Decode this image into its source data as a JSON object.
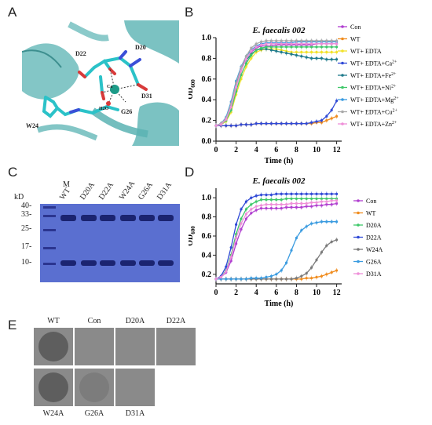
{
  "figure": {
    "panel_letters": {
      "a": "A",
      "b": "B",
      "c": "C",
      "d": "D",
      "e": "E"
    },
    "structure": {
      "labels": [
        "D22",
        "D20",
        "Ca",
        "D31",
        "H2O",
        "G26",
        "W24"
      ]
    },
    "gel": {
      "axis_unit": "kD",
      "marker_lane": "M",
      "lanes": [
        "WT",
        "D20A",
        "D22A",
        "W24A",
        "G26A",
        "D31A"
      ],
      "marker_sizes": [
        "40",
        "33",
        "25",
        "17",
        "10"
      ],
      "background": "#5a6fd0"
    },
    "plates": {
      "top_row": [
        {
          "label": "WT",
          "halo": "strong"
        },
        {
          "label": "Con",
          "halo": "none"
        },
        {
          "label": "D20A",
          "halo": "none"
        },
        {
          "label": "D22A",
          "halo": "none"
        }
      ],
      "bottom_row": [
        {
          "label": "W24A",
          "halo": "strong"
        },
        {
          "label": "G26A",
          "halo": "faint"
        },
        {
          "label": "D31A",
          "halo": "none"
        }
      ]
    }
  },
  "chart_data": [
    {
      "type": "line",
      "panel": "B",
      "title": "E. faecalis 002",
      "xlabel": "Time (h)",
      "ylabel": "OD600",
      "ylabel_main": "OD",
      "ylabel_sub": "600",
      "xlim": [
        0,
        12.5
      ],
      "ylim": [
        0.0,
        1.0
      ],
      "xticks": [
        "0",
        "2",
        "4",
        "6",
        "8",
        "10",
        "12"
      ],
      "yticks": [
        "0.0",
        "0.2",
        "0.4",
        "0.6",
        "0.8",
        "1.0"
      ],
      "legend_position": "right",
      "x": [
        0,
        0.5,
        1,
        1.5,
        2,
        2.5,
        3,
        3.5,
        4,
        4.5,
        5,
        5.5,
        6,
        6.5,
        7,
        7.5,
        8,
        8.5,
        9,
        9.5,
        10,
        10.5,
        11,
        11.5,
        12
      ],
      "series": [
        {
          "name": "Con",
          "legend_main": "Con",
          "legend_sup": "",
          "color": "#b03fd0",
          "marker": "circle",
          "values": [
            0.15,
            0.17,
            0.22,
            0.35,
            0.55,
            0.7,
            0.8,
            0.86,
            0.9,
            0.92,
            0.92,
            0.92,
            0.93,
            0.93,
            0.93,
            0.93,
            0.93,
            0.93,
            0.93,
            0.93,
            0.94,
            0.94,
            0.94,
            0.94,
            0.94
          ]
        },
        {
          "name": "WT",
          "legend_main": "WT",
          "legend_sup": "",
          "color": "#f08c1e",
          "marker": "circle",
          "values": [
            0.15,
            0.15,
            0.15,
            0.15,
            0.15,
            0.16,
            0.16,
            0.16,
            0.17,
            0.17,
            0.17,
            0.17,
            0.17,
            0.17,
            0.17,
            0.17,
            0.17,
            0.17,
            0.17,
            0.17,
            0.18,
            0.18,
            0.2,
            0.22,
            0.24
          ]
        },
        {
          "name": "WT+ EDTA",
          "legend_main": "WT+ EDTA",
          "legend_sup": "",
          "color": "#f2e22a",
          "marker": "circle",
          "values": [
            0.15,
            0.16,
            0.19,
            0.28,
            0.45,
            0.6,
            0.72,
            0.8,
            0.86,
            0.88,
            0.89,
            0.89,
            0.89,
            0.88,
            0.87,
            0.86,
            0.86,
            0.86,
            0.86,
            0.86,
            0.86,
            0.86,
            0.86,
            0.86,
            0.86
          ]
        },
        {
          "name": "WT+ EDTA+Ca2+",
          "legend_main": "WT+ EDTA+Ca",
          "legend_sup": "2+",
          "color": "#2f49d6",
          "marker": "circle",
          "values": [
            0.15,
            0.15,
            0.15,
            0.15,
            0.15,
            0.16,
            0.16,
            0.16,
            0.17,
            0.17,
            0.17,
            0.17,
            0.17,
            0.17,
            0.17,
            0.17,
            0.17,
            0.17,
            0.17,
            0.18,
            0.19,
            0.2,
            0.24,
            0.3,
            0.39
          ]
        },
        {
          "name": "WT+ EDTA+Fe2+",
          "legend_main": "WT+ EDTA+Fe",
          "legend_sup": "2+",
          "color": "#1f7b8c",
          "marker": "circle",
          "values": [
            0.15,
            0.17,
            0.22,
            0.36,
            0.56,
            0.7,
            0.78,
            0.84,
            0.88,
            0.89,
            0.89,
            0.88,
            0.87,
            0.86,
            0.85,
            0.84,
            0.83,
            0.82,
            0.81,
            0.8,
            0.8,
            0.8,
            0.79,
            0.79,
            0.79
          ]
        },
        {
          "name": "WT+ EDTA+Ni2+",
          "legend_main": "WT+ EDTA+Ni",
          "legend_sup": "2+",
          "color": "#3fc86a",
          "marker": "circle",
          "values": [
            0.15,
            0.16,
            0.2,
            0.3,
            0.48,
            0.64,
            0.75,
            0.83,
            0.88,
            0.9,
            0.91,
            0.91,
            0.91,
            0.91,
            0.91,
            0.91,
            0.91,
            0.91,
            0.91,
            0.91,
            0.91,
            0.91,
            0.91,
            0.91,
            0.91
          ]
        },
        {
          "name": "WT+ EDTA+Mg2+",
          "legend_main": "WT+ EDTA+Mg",
          "legend_sup": "2+",
          "color": "#3a9be0",
          "marker": "circle",
          "values": [
            0.15,
            0.17,
            0.23,
            0.38,
            0.58,
            0.72,
            0.82,
            0.88,
            0.92,
            0.94,
            0.95,
            0.95,
            0.95,
            0.95,
            0.95,
            0.95,
            0.96,
            0.96,
            0.96,
            0.96,
            0.96,
            0.96,
            0.96,
            0.96,
            0.96
          ]
        },
        {
          "name": "WT+ EDTA+Cu2+",
          "legend_main": "WT+ EDTA+Cu",
          "legend_sup": "2+",
          "color": "#a8a8a8",
          "marker": "circle",
          "values": [
            0.15,
            0.17,
            0.22,
            0.36,
            0.56,
            0.71,
            0.82,
            0.9,
            0.94,
            0.96,
            0.97,
            0.97,
            0.97,
            0.97,
            0.97,
            0.97,
            0.97,
            0.97,
            0.97,
            0.97,
            0.97,
            0.97,
            0.97,
            0.97,
            0.97
          ]
        },
        {
          "name": "WT+ EDTA+Zn2+",
          "legend_main": "WT+ EDTA+Zn",
          "legend_sup": "2+",
          "color": "#ef8fd8",
          "marker": "circle",
          "values": [
            0.15,
            0.16,
            0.21,
            0.33,
            0.52,
            0.68,
            0.79,
            0.87,
            0.91,
            0.93,
            0.94,
            0.94,
            0.94,
            0.94,
            0.94,
            0.94,
            0.94,
            0.94,
            0.94,
            0.94,
            0.94,
            0.94,
            0.94,
            0.94,
            0.94
          ]
        }
      ]
    },
    {
      "type": "line",
      "panel": "D",
      "title": "E. faecalis 002",
      "xlabel": "Time (h)",
      "ylabel": "OD600",
      "ylabel_main": "OD",
      "ylabel_sub": "600",
      "xlim": [
        0,
        12.5
      ],
      "ylim": [
        0.1,
        1.1
      ],
      "xticks": [
        "0",
        "2",
        "4",
        "6",
        "8",
        "10",
        "12"
      ],
      "yticks": [
        "0.2",
        "0.4",
        "0.6",
        "0.8",
        "1.0"
      ],
      "legend_position": "right",
      "x": [
        0,
        0.5,
        1,
        1.5,
        2,
        2.5,
        3,
        3.5,
        4,
        4.5,
        5,
        5.5,
        6,
        6.5,
        7,
        7.5,
        8,
        8.5,
        9,
        9.5,
        10,
        10.5,
        11,
        11.5,
        12
      ],
      "series": [
        {
          "name": "Con",
          "legend_main": "Con",
          "legend_sup": "",
          "color": "#b03fd0",
          "marker": "circle",
          "values": [
            0.15,
            0.17,
            0.22,
            0.34,
            0.52,
            0.67,
            0.78,
            0.84,
            0.87,
            0.89,
            0.89,
            0.89,
            0.89,
            0.89,
            0.9,
            0.9,
            0.9,
            0.9,
            0.91,
            0.91,
            0.92,
            0.92,
            0.93,
            0.93,
            0.94
          ]
        },
        {
          "name": "WT",
          "legend_main": "WT",
          "legend_sup": "",
          "color": "#f08c1e",
          "marker": "circle",
          "values": [
            0.15,
            0.15,
            0.15,
            0.15,
            0.15,
            0.15,
            0.15,
            0.15,
            0.15,
            0.15,
            0.15,
            0.15,
            0.15,
            0.15,
            0.15,
            0.15,
            0.15,
            0.15,
            0.16,
            0.16,
            0.17,
            0.18,
            0.2,
            0.22,
            0.24
          ]
        },
        {
          "name": "D20A",
          "legend_main": "D20A",
          "legend_sup": "",
          "color": "#3fc86a",
          "marker": "circle",
          "values": [
            0.15,
            0.17,
            0.24,
            0.4,
            0.62,
            0.78,
            0.88,
            0.93,
            0.96,
            0.98,
            0.98,
            0.98,
            0.98,
            0.98,
            0.99,
            0.99,
            0.99,
            0.99,
            0.99,
            0.99,
            0.99,
            0.99,
            0.99,
            0.99,
            0.99
          ]
        },
        {
          "name": "D22A",
          "legend_main": "D22A",
          "legend_sup": "",
          "color": "#2f49d6",
          "marker": "circle",
          "values": [
            0.15,
            0.18,
            0.28,
            0.48,
            0.72,
            0.88,
            0.96,
            1.0,
            1.02,
            1.03,
            1.03,
            1.03,
            1.04,
            1.04,
            1.04,
            1.04,
            1.04,
            1.04,
            1.04,
            1.04,
            1.04,
            1.04,
            1.04,
            1.04,
            1.04
          ]
        },
        {
          "name": "W24A",
          "legend_main": "W24A",
          "legend_sup": "",
          "color": "#7a7a7a",
          "marker": "circle",
          "values": [
            0.15,
            0.15,
            0.15,
            0.15,
            0.15,
            0.15,
            0.15,
            0.15,
            0.15,
            0.15,
            0.15,
            0.15,
            0.15,
            0.15,
            0.15,
            0.15,
            0.16,
            0.18,
            0.21,
            0.27,
            0.35,
            0.43,
            0.5,
            0.54,
            0.56
          ]
        },
        {
          "name": "G26A",
          "legend_main": "G26A",
          "legend_sup": "",
          "color": "#3a9be0",
          "marker": "circle",
          "values": [
            0.15,
            0.15,
            0.15,
            0.15,
            0.15,
            0.15,
            0.15,
            0.16,
            0.16,
            0.16,
            0.17,
            0.18,
            0.2,
            0.24,
            0.32,
            0.45,
            0.58,
            0.66,
            0.7,
            0.73,
            0.74,
            0.75,
            0.75,
            0.75,
            0.75
          ]
        },
        {
          "name": "D31A",
          "legend_main": "D31A",
          "legend_sup": "",
          "color": "#ef8fd8",
          "marker": "circle",
          "values": [
            0.15,
            0.17,
            0.23,
            0.38,
            0.58,
            0.73,
            0.83,
            0.88,
            0.91,
            0.92,
            0.93,
            0.93,
            0.93,
            0.93,
            0.93,
            0.94,
            0.94,
            0.94,
            0.94,
            0.95,
            0.95,
            0.96,
            0.96,
            0.97,
            0.97
          ]
        }
      ]
    }
  ]
}
